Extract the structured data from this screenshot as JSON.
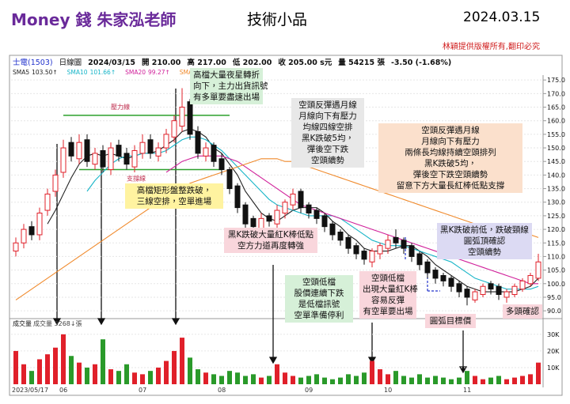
{
  "header": {
    "title": "Money 錢  朱家泓老師",
    "subtitle": "技術小品",
    "date": "2024.03.15",
    "copyright": "林穎提供版權所有,翻印必究"
  },
  "chart_data": {
    "type": "candlestick",
    "info": [
      "士電(1503)",
      "日線圖",
      "2024/03/15",
      "開 210.00",
      "高 217.00",
      "低 202.00",
      "收 205.00 s元",
      "量 54215 張",
      "-3.50 (-1.68%)"
    ],
    "categories": [
      "2023/05/17",
      null,
      null,
      null,
      null,
      null,
      "06",
      null,
      null,
      null,
      null,
      null,
      null,
      null,
      null,
      null,
      "07",
      null,
      null,
      null,
      null,
      null,
      null,
      null,
      null,
      null,
      "08",
      null,
      null,
      null,
      null,
      null,
      null,
      null,
      null,
      null,
      null,
      "09",
      null,
      null,
      null,
      null,
      null,
      null,
      null,
      null,
      null,
      "10",
      null,
      null,
      null,
      null,
      null,
      null,
      null,
      null,
      null,
      "11",
      null,
      null,
      null,
      null,
      null,
      null,
      null,
      null,
      null
    ],
    "open": [
      112,
      115,
      121,
      118,
      127,
      134,
      141,
      152,
      146,
      153,
      144,
      149,
      142,
      151,
      148,
      143,
      148,
      153,
      147,
      150,
      154,
      158,
      167,
      156,
      147,
      151,
      146,
      142,
      136,
      129,
      124,
      120,
      125,
      122,
      126,
      129,
      134,
      129,
      127,
      125,
      122,
      119,
      117,
      114,
      112,
      108,
      111,
      113,
      117,
      116,
      114,
      111,
      108,
      105,
      103,
      102,
      100,
      98,
      94,
      96,
      100,
      99,
      95,
      96,
      98,
      100,
      102
    ],
    "high": [
      117,
      122,
      123,
      128,
      135,
      142,
      153,
      154,
      155,
      155,
      150,
      151,
      152,
      153,
      150,
      151,
      155,
      155,
      152,
      157,
      162,
      172,
      168,
      158,
      152,
      152,
      148,
      143,
      137,
      130,
      125,
      126,
      126,
      129,
      131,
      135,
      135,
      130,
      128,
      126,
      123,
      120,
      118,
      115,
      113,
      113,
      115,
      118,
      120,
      117,
      115,
      112,
      109,
      106,
      104,
      103,
      101,
      99,
      98,
      100,
      101,
      100,
      98,
      100,
      102,
      104,
      111
    ],
    "low": [
      110,
      113,
      116,
      116,
      125,
      132,
      139,
      145,
      144,
      143,
      142,
      141,
      140,
      145,
      142,
      141,
      146,
      146,
      145,
      148,
      152,
      156,
      153,
      146,
      145,
      143,
      140,
      133,
      126,
      120,
      119,
      118,
      121,
      120,
      124,
      127,
      126,
      124,
      122,
      119,
      116,
      114,
      111,
      109,
      107,
      106,
      109,
      111,
      113,
      111,
      108,
      105,
      102,
      100,
      99,
      97,
      95,
      92,
      93,
      95,
      96,
      94,
      93,
      95,
      97,
      99,
      101
    ],
    "close": [
      115,
      120,
      118,
      126,
      133,
      140,
      150,
      147,
      152,
      145,
      148,
      143,
      150,
      147,
      144,
      149,
      152,
      148,
      150,
      155,
      160,
      165,
      155,
      148,
      150,
      145,
      142,
      135,
      128,
      122,
      121,
      124,
      123,
      127,
      130,
      133,
      128,
      126,
      124,
      121,
      118,
      116,
      113,
      111,
      109,
      112,
      114,
      116,
      115,
      113,
      110,
      107,
      104,
      102,
      101,
      99,
      97,
      95,
      97,
      99,
      98,
      96,
      97,
      99,
      101,
      103,
      108
    ],
    "up_color": "#e0202a",
    "down_color": "#111111",
    "series": [
      {
        "name": "SMA5",
        "legend_value": "103.50↑",
        "color": "#222222",
        "values": [
          null,
          null,
          null,
          null,
          122,
          127,
          133,
          139,
          144,
          147,
          148,
          147,
          148,
          147,
          146,
          147,
          148,
          148,
          149,
          151,
          153,
          156,
          157,
          156,
          154,
          150,
          148,
          144,
          140,
          134,
          130,
          126,
          124,
          123,
          125,
          127,
          128,
          128,
          128,
          126,
          123,
          121,
          118,
          116,
          113,
          112,
          112,
          112,
          113,
          114,
          114,
          112,
          110,
          107,
          105,
          103,
          101,
          99,
          98,
          97,
          97,
          97,
          97,
          97,
          98,
          99,
          102
        ]
      },
      {
        "name": "SMA10",
        "legend_value": "101.66↑",
        "color": "#18b5c8",
        "values": [
          null,
          null,
          null,
          null,
          null,
          null,
          null,
          null,
          null,
          134,
          138,
          141,
          144,
          146,
          147,
          147,
          148,
          148,
          148,
          149,
          151,
          153,
          154,
          154,
          153,
          151,
          149,
          146,
          143,
          140,
          137,
          134,
          131,
          129,
          128,
          127,
          126,
          125,
          125,
          125,
          125,
          124,
          122,
          120,
          118,
          116,
          115,
          114,
          114,
          114,
          113,
          112,
          111,
          110,
          109,
          108,
          106,
          104,
          102,
          101,
          100,
          99,
          98,
          98,
          98,
          98,
          99
        ]
      },
      {
        "name": "SMA20",
        "legend_value": "99.27↑",
        "color": "#d0209a",
        "values": [
          null,
          null,
          null,
          null,
          null,
          null,
          null,
          null,
          null,
          null,
          null,
          null,
          null,
          null,
          null,
          null,
          null,
          null,
          null,
          141,
          143,
          145,
          146,
          147,
          147,
          147,
          147,
          146,
          145,
          143,
          141,
          139,
          137,
          135,
          133,
          131,
          129,
          128,
          127,
          126,
          125,
          124,
          123,
          122,
          121,
          120,
          119,
          118,
          117,
          116,
          115,
          114,
          113,
          112,
          111,
          110,
          109,
          108,
          107,
          106,
          105,
          104,
          103,
          102,
          101,
          100,
          100
        ]
      },
      {
        "name": "SMA60",
        "legend_value": "10",
        "color": "#f08a2c",
        "values": [
          94,
          96,
          98,
          100,
          102,
          104,
          106,
          108,
          110,
          112,
          114,
          116,
          118,
          120,
          122,
          124,
          126,
          128,
          130,
          132,
          134,
          135,
          137,
          138,
          139,
          140,
          141,
          142,
          143,
          144,
          145,
          146,
          146,
          146,
          145,
          145,
          144,
          143,
          142,
          141,
          140,
          139,
          138,
          137,
          136,
          135,
          134,
          133,
          132,
          131,
          130,
          129,
          128,
          127,
          126,
          125,
          124,
          123,
          122,
          121,
          121,
          120,
          119,
          119,
          118,
          118,
          117
        ]
      }
    ],
    "ylim": [
      88,
      176.8
    ],
    "yticks": [
      {
        "value": 175,
        "label": "175.0"
      },
      {
        "value": 170,
        "label": "170.0"
      },
      {
        "value": 165,
        "label": "165.0"
      },
      {
        "value": 160,
        "label": "160.0"
      },
      {
        "value": 155,
        "label": "155.0"
      },
      {
        "value": 150,
        "label": "150.0"
      },
      {
        "value": 145,
        "label": "145.0"
      },
      {
        "value": 140,
        "label": "140.0"
      },
      {
        "value": 135,
        "label": "135.0"
      },
      {
        "value": 130,
        "label": "130.0"
      },
      {
        "value": 125,
        "label": "125.0"
      },
      {
        "value": 120,
        "label": "120.0"
      },
      {
        "value": 115,
        "label": "115.0"
      },
      {
        "value": 110,
        "label": "110.0"
      },
      {
        "value": 105,
        "label": "105.0"
      },
      {
        "value": 100,
        "label": "100.0"
      },
      {
        "value": 95,
        "label": "95.0"
      },
      {
        "value": 90,
        "label": "90.0"
      }
    ],
    "grid": true,
    "levels": [
      {
        "label": "壓力線",
        "value": 162,
        "from": 6,
        "to": 27
      },
      {
        "label": "支撐線",
        "value": 142,
        "from": 8,
        "to": 26
      }
    ],
    "volume": {
      "title": "成交量",
      "legend": "成交量 3268↓張",
      "values": [
        20000,
        12000,
        8000,
        15000,
        18000,
        22000,
        30000,
        17000,
        13000,
        10000,
        12000,
        27000,
        9000,
        8000,
        12000,
        7000,
        6000,
        8000,
        10000,
        14000,
        20000,
        28000,
        16000,
        9000,
        7000,
        6000,
        5000,
        8000,
        7000,
        5000,
        6000,
        4000,
        5000,
        12000,
        7000,
        5000,
        4000,
        5000,
        6000,
        4000,
        3000,
        4000,
        6000,
        5000,
        7000,
        14000,
        9000,
        6000,
        8000,
        5000,
        4000,
        6000,
        4000,
        5000,
        4000,
        3000,
        4000,
        8000,
        5000,
        3000,
        4000,
        5000,
        3000,
        4000,
        5000,
        6000,
        13000
      ],
      "ylim": [
        0,
        38500
      ],
      "yticks": [
        {
          "value": 30000,
          "label": "30K"
        },
        {
          "value": 20000,
          "label": "20K"
        },
        {
          "value": 10000,
          "label": "10K"
        }
      ]
    }
  },
  "annotations": [
    {
      "lines": [
        "高檔大量夜星轉折",
        "向下，主力出貨訊號",
        "有多單要盡速出場"
      ]
    },
    {
      "lines": [
        "空頭反彈遇月線",
        "月線向下有壓力",
        "均線四線空排",
        "黑K跌破5均，",
        "彈後空下跌",
        "空頭續勢"
      ]
    },
    {
      "lines": [
        "空頭反彈遇月線",
        "月線向下有壓力",
        "兩條長均線持續空頭排列",
        "黑K跌破5均，",
        "彈後空下跌空頭續勢",
        "留意下方大量長紅棒低點支撐"
      ]
    },
    {
      "lines": [
        "高檔矩形盤整跌破，",
        "三線空排，空單進場"
      ]
    },
    {
      "lines": [
        "黑K跌破大量紅K棒低點",
        "空方力道再度轉強"
      ]
    },
    {
      "lines": [
        "黑K跌破前低，跌破頸線",
        "圓弧頂確認",
        "空頭續勢"
      ]
    },
    {
      "lines": [
        "空頭低檔",
        "股價連續下跌",
        "是低檔訊號",
        "空單準備停利"
      ]
    },
    {
      "lines": [
        "空頭低檔",
        "出現大量紅K棒",
        "容易反彈",
        "有空單要出場"
      ]
    },
    {
      "lines": [
        "圓弧目標價"
      ]
    },
    {
      "lines": [
        "多頭確認"
      ]
    }
  ]
}
